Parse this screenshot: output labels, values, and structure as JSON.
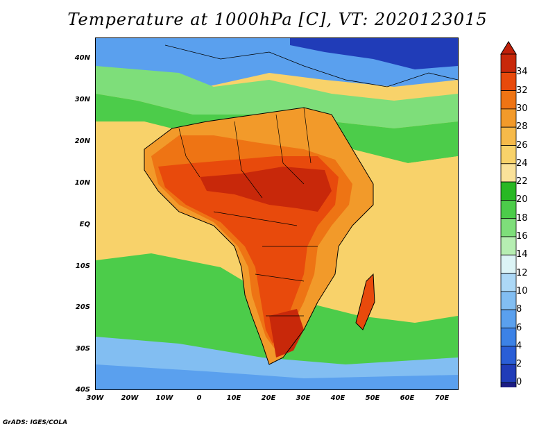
{
  "title": "Temperature at 1000hPa [C], VT: 2020123015",
  "footer": "GrADS: IGES/COLA",
  "map": {
    "projection": "lat-lon",
    "lon_range": [
      -30,
      75
    ],
    "lat_range": [
      -40,
      45
    ],
    "variable": "temperature",
    "level": "1000hPa",
    "units": "C"
  },
  "lat_labels": [
    "40N",
    "30N",
    "20N",
    "10N",
    "EQ",
    "10S",
    "20S",
    "30S",
    "40S"
  ],
  "lon_labels": [
    "30W",
    "20W",
    "10W",
    "0",
    "10E",
    "20E",
    "30E",
    "40E",
    "50E",
    "60E",
    "70E"
  ],
  "colorbar": {
    "labels": [
      "34",
      "32",
      "30",
      "28",
      "26",
      "24",
      "22",
      "20",
      "18",
      "16",
      "14",
      "12",
      "10",
      "8",
      "6",
      "4",
      "2",
      "0"
    ],
    "colors": [
      "#1c1c84",
      "#203cb8",
      "#2a5ed6",
      "#3c82e6",
      "#5aa0ee",
      "#82bef2",
      "#acd8f6",
      "#dcf4f6",
      "#b6eeb2",
      "#7ede7a",
      "#4ccc4a",
      "#28b824",
      "#fae29a",
      "#f8d26a",
      "#f6ba4a",
      "#f29a2a",
      "#ee7414",
      "#e84a0c",
      "#c8280a"
    ],
    "min_color": "#d6d6f6",
    "max_color": "#c0200a"
  }
}
